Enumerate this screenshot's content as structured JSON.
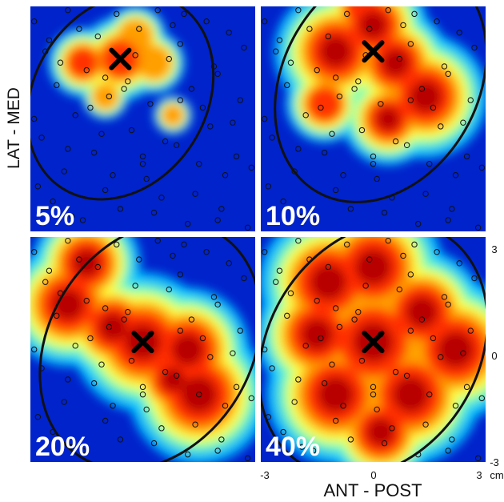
{
  "chart_data": {
    "type": "heatmap",
    "y_axis_label": "LAT - MED",
    "x_axis_label": "ANT - POST",
    "x_ticks": [
      "-3",
      "0",
      "3"
    ],
    "y_ticks": [
      "3",
      "0",
      "-3"
    ],
    "unit": "cm",
    "xlim": [
      -3,
      3
    ],
    "ylim": [
      -3,
      3
    ],
    "colormap": [
      "#00008f",
      "#0040ff",
      "#00c8ff",
      "#80ffb0",
      "#ffff40",
      "#ff9a00",
      "#ff2a00",
      "#b00000"
    ],
    "panels": [
      {
        "label": "5%",
        "center": [
          -0.6,
          1.6
        ],
        "peaks": [
          {
            "x": -0.6,
            "y": 1.6,
            "w": 0.55
          },
          {
            "x": -1.6,
            "y": 1.5,
            "w": 0.45
          },
          {
            "x": -0.2,
            "y": 2.2,
            "w": 0.4
          },
          {
            "x": 0.3,
            "y": 1.5,
            "w": 0.4
          },
          {
            "x": -1.0,
            "y": 0.6,
            "w": 0.3
          },
          {
            "x": 0.8,
            "y": 0.1,
            "w": 0.25
          }
        ],
        "ellipse": {
          "cx": -0.6,
          "cy": 0.6,
          "rx": 2.3,
          "ry": 2.9,
          "angle_deg": 32
        }
      },
      {
        "label": "10%",
        "center": [
          0.0,
          1.8
        ],
        "peaks": [
          {
            "x": -1.0,
            "y": 1.8,
            "w": 0.8
          },
          {
            "x": 0.0,
            "y": 2.5,
            "w": 0.7
          },
          {
            "x": 0.6,
            "y": 1.5,
            "w": 0.7
          },
          {
            "x": 1.4,
            "y": 0.6,
            "w": 0.8
          },
          {
            "x": 0.4,
            "y": 0.0,
            "w": 0.6
          },
          {
            "x": -1.3,
            "y": 0.4,
            "w": 0.5
          },
          {
            "x": -0.3,
            "y": 3.0,
            "w": 0.5
          }
        ],
        "ellipse": {
          "cx": 0.2,
          "cy": 1.0,
          "rx": 2.6,
          "ry": 3.4,
          "angle_deg": 30
        }
      },
      {
        "label": "20%",
        "center": [
          0.0,
          0.2
        ],
        "peaks": [
          {
            "x": -2.0,
            "y": 1.2,
            "w": 0.8
          },
          {
            "x": -0.8,
            "y": 0.6,
            "w": 0.7
          },
          {
            "x": 0.0,
            "y": 0.2,
            "w": 0.9
          },
          {
            "x": 1.2,
            "y": 0.0,
            "w": 0.8
          },
          {
            "x": 1.5,
            "y": -1.2,
            "w": 0.9
          },
          {
            "x": -1.5,
            "y": 2.3,
            "w": 0.7
          },
          {
            "x": 0.8,
            "y": -0.8,
            "w": 0.6
          }
        ],
        "ellipse": {
          "cx": 0.2,
          "cy": 0.1,
          "rx": 2.7,
          "ry": 3.5,
          "angle_deg": 32
        }
      },
      {
        "label": "40%",
        "center": [
          0.0,
          0.2
        ],
        "peaks": [
          {
            "x": -1.2,
            "y": 1.8,
            "w": 0.9
          },
          {
            "x": 0.0,
            "y": 2.2,
            "w": 0.9
          },
          {
            "x": 0.0,
            "y": 0.2,
            "w": 1.0
          },
          {
            "x": 1.3,
            "y": 1.0,
            "w": 0.8
          },
          {
            "x": 2.2,
            "y": 0.0,
            "w": 0.9
          },
          {
            "x": 1.0,
            "y": -1.2,
            "w": 0.9
          },
          {
            "x": -1.0,
            "y": -1.2,
            "w": 0.9
          },
          {
            "x": -1.5,
            "y": 0.4,
            "w": 0.8
          },
          {
            "x": 0.2,
            "y": -2.2,
            "w": 0.7
          }
        ],
        "ellipse": {
          "cx": 0.0,
          "cy": 0.0,
          "rx": 2.8,
          "ry": 3.6,
          "angle_deg": 32
        }
      }
    ],
    "electrode_pattern": {
      "x": [
        -2.9,
        -2.7,
        -2.6,
        -2.4,
        -2.3,
        -2.1,
        -2.0,
        -1.8,
        -1.6,
        -1.5,
        -1.3,
        -1.2,
        -1.0,
        -0.9,
        -0.7,
        -0.6,
        -0.4,
        -0.3,
        -0.1,
        0.1,
        0.2,
        0.4,
        0.5,
        0.7,
        0.9,
        1.0,
        1.2,
        1.3,
        1.5,
        1.7,
        1.8,
        2.0,
        2.1,
        2.3,
        2.5,
        2.6,
        2.8,
        -2.8,
        -2.2,
        -1.7,
        -1.1,
        -0.5,
        0.0,
        0.6,
        1.1,
        1.6,
        2.2,
        2.7,
        -2.5,
        -1.9,
        -1.4,
        -0.8,
        -0.2,
        0.3,
        0.8,
        1.4,
        1.9,
        2.4,
        -2.9,
        -2.0,
        -1.0,
        0.0,
        1.0,
        2.0,
        2.9
      ],
      "y": [
        2.6,
        -0.5,
        1.8,
        -2.2,
        0.9,
        -1.4,
        2.9,
        0.1,
        -2.7,
        1.3,
        -0.9,
        2.2,
        -1.9,
        0.6,
        2.8,
        -2.4,
        1.0,
        -0.3,
        2.4,
        -1.6,
        0.4,
        2.9,
        -2.1,
        1.6,
        -0.7,
        2.0,
        -2.8,
        0.8,
        -1.2,
        2.6,
        -0.2,
        1.2,
        -2.4,
        2.3,
        -1.0,
        0.5,
        -2.9,
        -1.8,
        1.5,
        2.4,
        -0.4,
        0.8,
        -1.2,
        -0.6,
        2.8,
        0.3,
        -1.5,
        1.9,
        2.1,
        -2.6,
        0.3,
        -1.5,
        1.7,
        -2.5,
        2.5,
        -2.0,
        1.4,
        -0.1,
        0.0,
        -0.8,
        1.1,
        -1.0,
        0.5,
        -2.7,
        -1.3
      ]
    }
  }
}
